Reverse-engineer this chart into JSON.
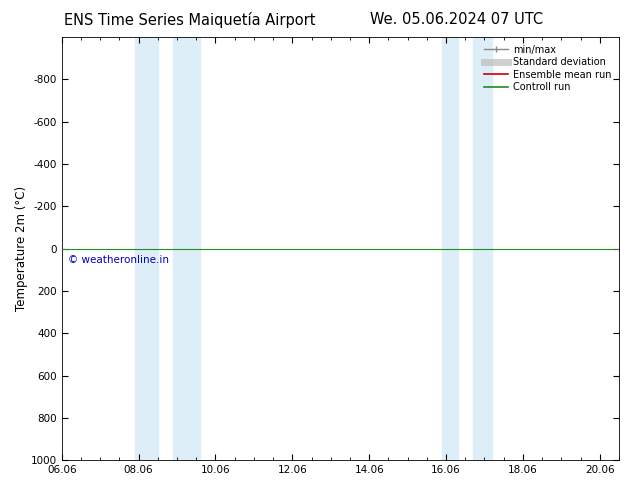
{
  "title_left": "ENS Time Series Maiquetía Airport",
  "title_right": "We. 05.06.2024 07 UTC",
  "ylabel": "Temperature 2m (°C)",
  "ylim_bottom": -1000,
  "ylim_top": 1000,
  "yticks": [
    -800,
    -600,
    -400,
    -200,
    0,
    200,
    400,
    600,
    800,
    1000
  ],
  "xtick_labels": [
    "06.06",
    "08.06",
    "10.06",
    "12.06",
    "14.06",
    "16.06",
    "18.06",
    "20.06"
  ],
  "xtick_positions": [
    0,
    2,
    4,
    6,
    8,
    10,
    12,
    14
  ],
  "xlim": [
    0,
    14.5
  ],
  "blue_bands": [
    [
      1.9,
      2.5
    ],
    [
      2.9,
      3.6
    ],
    [
      9.9,
      10.3
    ],
    [
      10.7,
      11.2
    ]
  ],
  "blue_band_color": "#ddeef8",
  "control_run_color": "#228B22",
  "ensemble_mean_color": "#cc0000",
  "copyright_text": "© weatheronline.in",
  "copyright_color": "#0000bb",
  "legend_labels": [
    "min/max",
    "Standard deviation",
    "Ensemble mean run",
    "Controll run"
  ],
  "background_color": "#ffffff",
  "title_fontsize": 10.5,
  "tick_fontsize": 7.5,
  "ylabel_fontsize": 8.5
}
